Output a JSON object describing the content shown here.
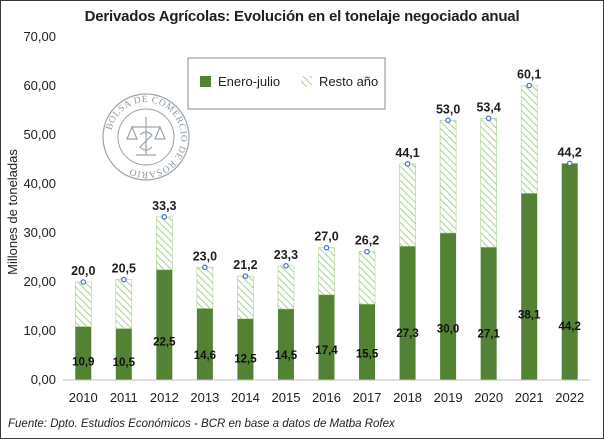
{
  "title": "Derivados Agrícolas: Evolución en el tonelaje negociado anual",
  "source": "Fuente: Dpto. Estudios Económicos - BCR en base a datos de Matba Rofex",
  "watermark_text": "BOLSA DE COMERCIO DE ROSARIO",
  "colors": {
    "enero_julio": "#548235",
    "resto_hatch": "#a9d18e",
    "marker": "#4472c4"
  },
  "chart_data": {
    "type": "bar",
    "stacked": true,
    "title": "Derivados Agrícolas: Evolución en el tonelaje negociado anual",
    "ylabel": "Millones de toneladas",
    "xlabel": "",
    "ylim": [
      0,
      70
    ],
    "yticks": [
      "0,00",
      "10,00",
      "20,00",
      "30,00",
      "40,00",
      "50,00",
      "60,00",
      "70,00"
    ],
    "legend_position": "top-center",
    "categories": [
      "2010",
      "2011",
      "2012",
      "2013",
      "2014",
      "2015",
      "2016",
      "2017",
      "2018",
      "2019",
      "2020",
      "2021",
      "2022"
    ],
    "series": [
      {
        "name": "Enero-julio",
        "values": [
          10.9,
          10.5,
          22.5,
          14.6,
          12.5,
          14.5,
          17.4,
          15.5,
          27.3,
          30.0,
          27.1,
          38.1,
          44.2
        ],
        "labels": [
          "10,9",
          "10,5",
          "22,5",
          "14,6",
          "12,5",
          "14,5",
          "17,4",
          "15,5",
          "27,3",
          "30,0",
          "27,1",
          "38,1",
          "44,2"
        ]
      },
      {
        "name": "Resto año",
        "values": [
          9.1,
          10.0,
          10.8,
          8.4,
          8.7,
          8.8,
          9.6,
          10.7,
          16.8,
          23.0,
          26.3,
          22.0,
          0.0
        ]
      }
    ],
    "totals": [
      20.0,
      20.5,
      33.3,
      23.0,
      21.2,
      23.3,
      27.0,
      26.2,
      44.1,
      53.0,
      53.4,
      60.1,
      44.2
    ],
    "total_labels": [
      "20,0",
      "20,5",
      "33,3",
      "23,0",
      "21,2",
      "23,3",
      "27,0",
      "26,2",
      "44,1",
      "53,0",
      "53,4",
      "60,1",
      "44,2"
    ]
  }
}
